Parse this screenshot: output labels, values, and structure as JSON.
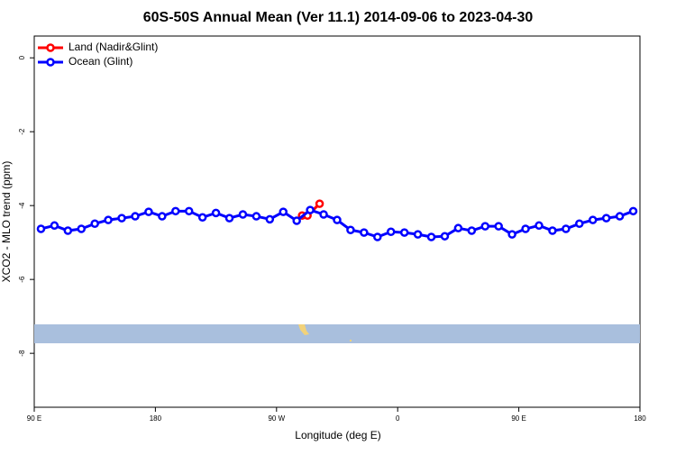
{
  "chart_data": {
    "type": "line",
    "title": "60S-50S Annual Mean (Ver 11.1)   2014-09-06 to 2023-04-30",
    "xlabel": "Longitude (deg E)",
    "ylabel": "XCO2 - MLO trend (ppm)",
    "xlim": [
      90,
      540
    ],
    "ylim": [
      -9.46,
      0.59
    ],
    "xticks": [
      {
        "value": 90,
        "label": "90 E"
      },
      180,
      {
        "value": 270,
        "label": "90 W"
      },
      {
        "value": 360,
        "label": "0"
      },
      {
        "value": 450,
        "label": "90 E"
      },
      {
        "value": 540,
        "label": "180"
      }
    ],
    "yticks": [
      0,
      -2,
      -4,
      -6,
      -8
    ],
    "legend": "top-left",
    "series": [
      {
        "name": "Land (Nadir&Glint)",
        "color": "#ff0000",
        "x": [
          289,
          293,
          302
        ],
        "values": [
          -4.27,
          -4.27,
          -3.95
        ]
      },
      {
        "name": "Ocean (Glint)",
        "color": "#0000ff",
        "x": [
          95,
          105,
          115,
          125,
          135,
          145,
          155,
          165,
          175,
          185,
          195,
          205,
          215,
          225,
          235,
          245,
          255,
          265,
          275,
          285,
          295,
          305,
          315,
          325,
          335,
          345,
          355,
          365,
          375,
          385,
          395,
          405,
          415,
          425,
          435,
          445,
          455,
          465,
          475,
          485,
          495,
          505,
          515,
          525,
          535
        ],
        "values": [
          -4.63,
          -4.54,
          -4.68,
          -4.63,
          -4.49,
          -4.39,
          -4.34,
          -4.29,
          -4.17,
          -4.29,
          -4.15,
          -4.15,
          -4.32,
          -4.2,
          -4.34,
          -4.24,
          -4.29,
          -4.37,
          -4.17,
          -4.41,
          -4.12,
          -4.24,
          -4.39,
          -4.66,
          -4.73,
          -4.85,
          -4.71,
          -4.73,
          -4.78,
          -4.85,
          -4.83,
          -4.61,
          -4.68,
          -4.56,
          -4.56,
          -4.78,
          -4.63,
          -4.54,
          -4.68,
          -4.63,
          -4.49,
          -4.39,
          -4.34,
          -4.29,
          -4.15
        ]
      }
    ]
  }
}
